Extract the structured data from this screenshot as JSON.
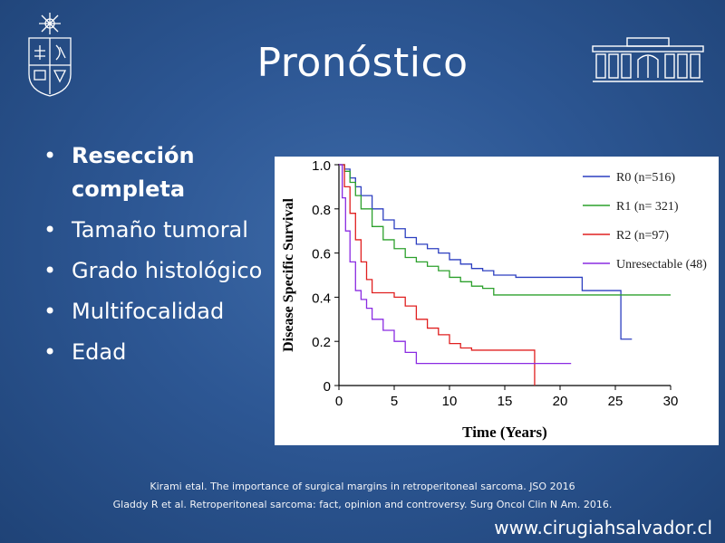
{
  "slide": {
    "title": "Pronóstico",
    "bullets": [
      {
        "text": "Resección completa",
        "bold": true
      },
      {
        "text": "Tamaño tumoral",
        "bold": false
      },
      {
        "text": "Grado histológico",
        "bold": false
      },
      {
        "text": "Multifocalidad",
        "bold": false
      },
      {
        "text": "Edad",
        "bold": false
      }
    ],
    "bullet_glyph": "•",
    "references": [
      "Kirami etal. The importance of surgical margins in retroperitoneal sarcoma. JSO 2016",
      "Gladdy R et al. Retroperitoneal sarcoma: fact, opinion and controversy. Surg Oncol Clin N Am. 2016."
    ],
    "website": "www.cirugiahsalvador.cl",
    "colors": {
      "background": "#2d5794",
      "text": "#ffffff"
    },
    "icons": [
      "university-crest-icon",
      "building-facade-icon"
    ]
  },
  "chart_data": {
    "type": "line",
    "subtype": "kaplan-meier-step",
    "xlabel": "Time (Years)",
    "ylabel": "Disease Specific Survival",
    "xlim": [
      0,
      30
    ],
    "ylim": [
      0,
      1.0
    ],
    "xticks": [
      "0",
      "5",
      "10",
      "15",
      "20",
      "25",
      "30"
    ],
    "yticks": [
      "0",
      "0.2",
      "0.4",
      "0.6",
      "0.8",
      "1.0"
    ],
    "legend_position": "top-right",
    "grid": false,
    "series": [
      {
        "name": "R0 (n=516)",
        "color": "#2c3fc0",
        "x": [
          0,
          0.5,
          1,
          1.5,
          2,
          3,
          4,
          5,
          6,
          7,
          8,
          9,
          10,
          11,
          12,
          13,
          14,
          16,
          18,
          20,
          22,
          25.5,
          25.5,
          26.5
        ],
        "y": [
          1.0,
          0.98,
          0.94,
          0.9,
          0.86,
          0.8,
          0.75,
          0.71,
          0.67,
          0.64,
          0.62,
          0.6,
          0.57,
          0.55,
          0.53,
          0.52,
          0.5,
          0.49,
          0.49,
          0.49,
          0.43,
          0.43,
          0.21,
          0.21
        ]
      },
      {
        "name": "R1 (n= 321)",
        "color": "#2ca02c",
        "x": [
          0,
          0.5,
          1,
          1.5,
          2,
          3,
          4,
          5,
          6,
          7,
          8,
          9,
          10,
          11,
          12,
          13,
          14,
          16,
          20,
          25,
          30
        ],
        "y": [
          1.0,
          0.97,
          0.92,
          0.86,
          0.8,
          0.72,
          0.66,
          0.62,
          0.58,
          0.56,
          0.54,
          0.52,
          0.49,
          0.47,
          0.45,
          0.44,
          0.41,
          0.41,
          0.41,
          0.41,
          0.41
        ]
      },
      {
        "name": "R2 (n=97)",
        "color": "#e02020",
        "x": [
          0,
          0.5,
          1,
          1.5,
          2,
          2.5,
          3,
          4,
          5,
          6,
          7,
          8,
          9,
          10,
          11,
          12,
          14,
          16,
          17.7,
          17.7
        ],
        "y": [
          1.0,
          0.9,
          0.78,
          0.66,
          0.56,
          0.48,
          0.42,
          0.42,
          0.4,
          0.36,
          0.3,
          0.26,
          0.23,
          0.19,
          0.17,
          0.16,
          0.16,
          0.16,
          0.16,
          0.0
        ]
      },
      {
        "name": "Unresectable (48)",
        "color": "#8a2be2",
        "x": [
          0,
          0.3,
          0.6,
          1,
          1.5,
          2,
          2.5,
          3,
          4,
          5,
          6,
          7,
          10,
          15,
          21
        ],
        "y": [
          1.0,
          0.85,
          0.7,
          0.56,
          0.43,
          0.39,
          0.35,
          0.3,
          0.25,
          0.2,
          0.15,
          0.1,
          0.1,
          0.1,
          0.1
        ]
      }
    ]
  }
}
